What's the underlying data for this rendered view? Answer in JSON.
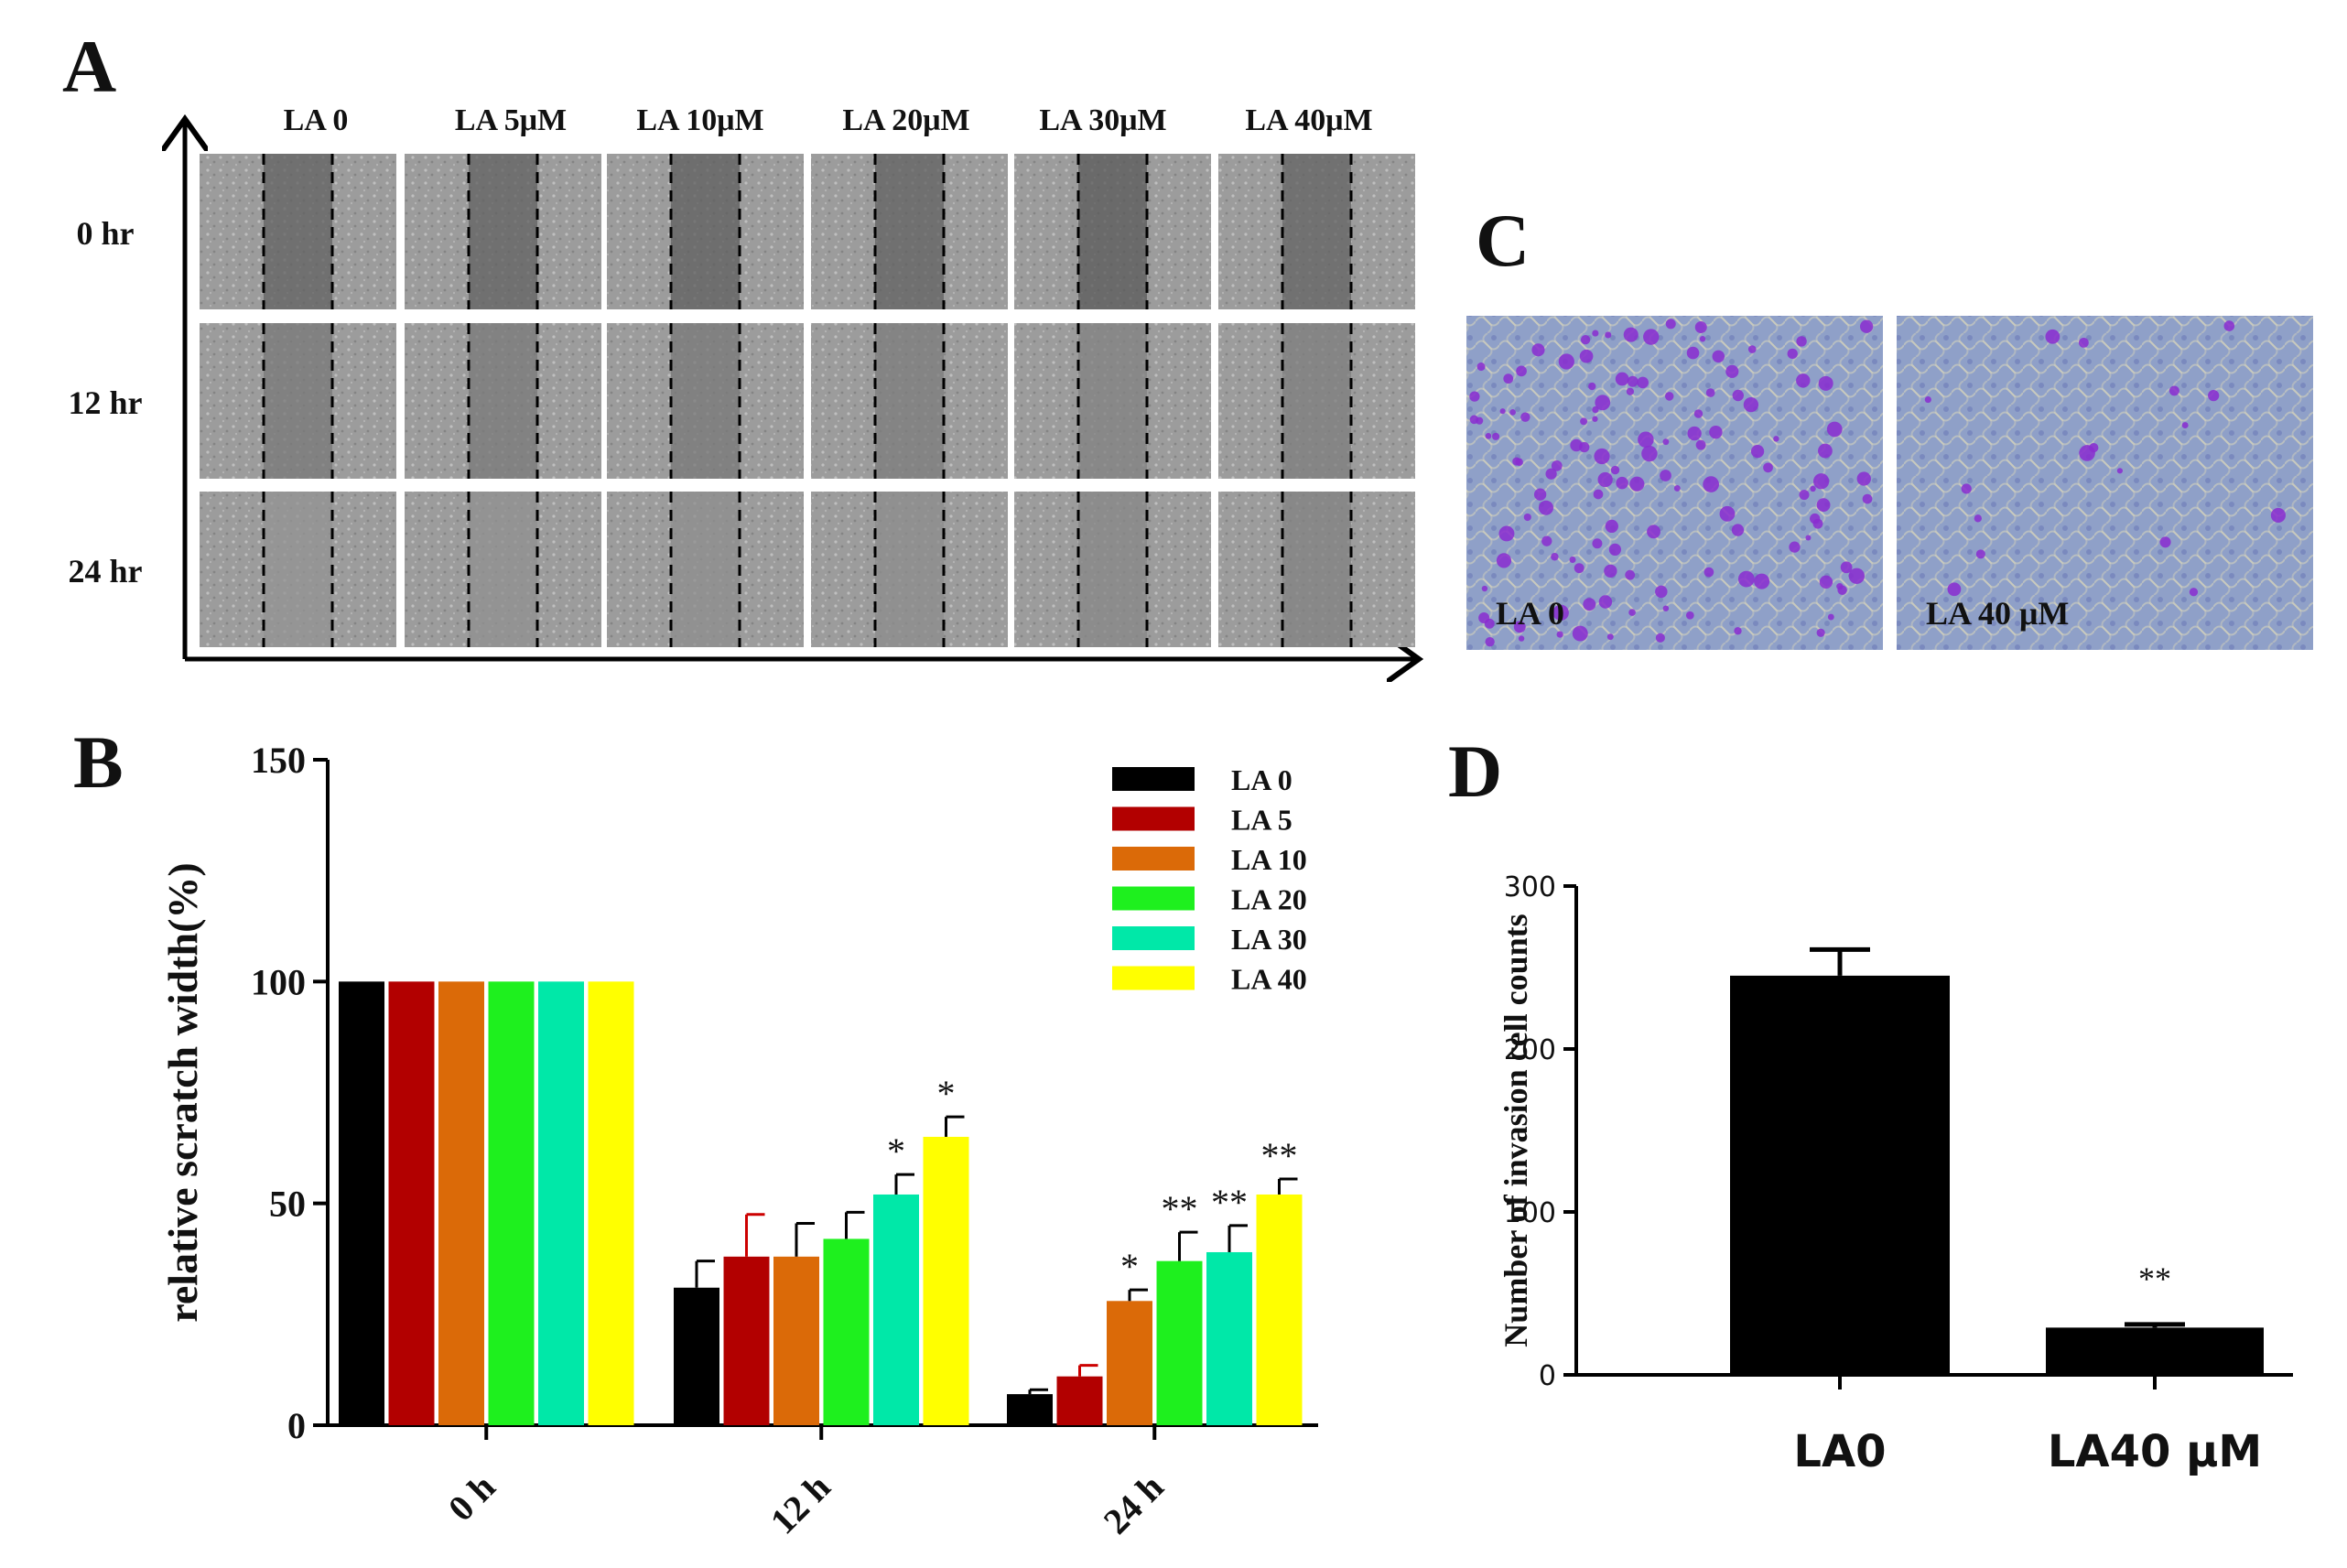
{
  "panels": {
    "A": {
      "letter": "A",
      "columns": [
        "LA 0",
        "LA 5μM",
        "LA 10μM",
        "LA  20μM",
        "LA  30μM",
        "LA 40μM"
      ],
      "rows": [
        "0 hr",
        "12 hr",
        "24 hr"
      ],
      "gap_shade": [
        [
          0.3,
          0.3,
          0.28,
          0.3,
          0.22,
          0.32
        ],
        [
          0.55,
          0.58,
          0.55,
          0.6,
          0.65,
          0.62
        ],
        [
          0.85,
          0.82,
          0.8,
          0.78,
          0.72,
          0.66
        ]
      ]
    },
    "B": {
      "letter": "B"
    },
    "C": {
      "letter": "C",
      "labels": [
        "LA 0",
        "LA 40 μM"
      ],
      "stain_density": [
        0.9,
        0.12
      ]
    },
    "D": {
      "letter": "D"
    }
  },
  "colors": {
    "LA 0": "#000000",
    "LA 5": "#b20000",
    "LA 10": "#db6a08",
    "LA 20": "#1ef01e",
    "LA 30": "#00e8a8",
    "LA 40": "#ffff00",
    "micrograph_bg": "#9a9a9a",
    "invasion_bg": "#8fa0c8",
    "stain": "#8a2bd0"
  },
  "chart_data": [
    {
      "id": "B",
      "type": "bar",
      "title": "",
      "ylabel": "relative scratch width(%)",
      "xlabel": "",
      "ylim": [
        0,
        150
      ],
      "yticks": [
        0,
        50,
        100,
        150
      ],
      "categories": [
        "0 h",
        "12 h",
        "24 h"
      ],
      "series": [
        {
          "name": "LA 0",
          "values": [
            100,
            31,
            7
          ],
          "errors": [
            0,
            6,
            1
          ],
          "sig": [
            "",
            "",
            ""
          ]
        },
        {
          "name": "LA 5",
          "values": [
            100,
            38,
            11
          ],
          "errors": [
            0,
            9.5,
            2.5
          ],
          "sig": [
            "",
            "",
            ""
          ]
        },
        {
          "name": "LA 10",
          "values": [
            100,
            38,
            28
          ],
          "errors": [
            0,
            7.5,
            2.5
          ],
          "sig": [
            "",
            "",
            "*"
          ]
        },
        {
          "name": "LA 20",
          "values": [
            100,
            42,
            37
          ],
          "errors": [
            0,
            6,
            6.5
          ],
          "sig": [
            "",
            "",
            "**"
          ]
        },
        {
          "name": "LA 30",
          "values": [
            100,
            52,
            39
          ],
          "errors": [
            0,
            4.5,
            6
          ],
          "sig": [
            "",
            "*",
            "**"
          ]
        },
        {
          "name": "LA 40",
          "values": [
            100,
            65,
            52
          ],
          "errors": [
            0,
            4.5,
            3.5
          ],
          "sig": [
            "",
            "*",
            "**"
          ]
        }
      ],
      "legend": "top-right"
    },
    {
      "id": "D",
      "type": "bar",
      "title": "",
      "ylabel": "Number of invasion cell counts",
      "xlabel": "",
      "ylim": [
        0,
        300
      ],
      "yticks": [
        0,
        100,
        200,
        300
      ],
      "categories": [
        "LA0",
        "LA40 μM"
      ],
      "values": [
        245,
        29
      ],
      "errors": [
        16,
        2
      ],
      "sig": [
        "",
        "**"
      ]
    }
  ]
}
